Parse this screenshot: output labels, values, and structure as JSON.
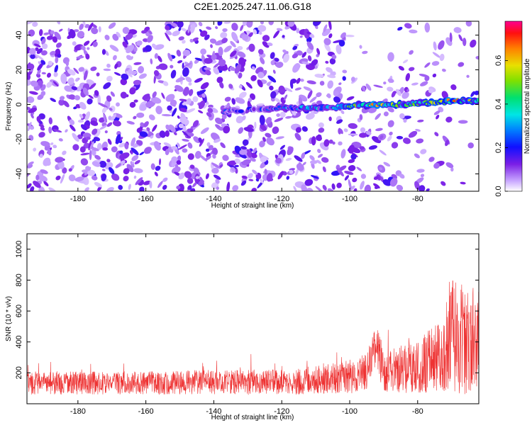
{
  "title": "C2E1.2025.247.11.06.G18",
  "chart_data": [
    {
      "type": "heatmap",
      "title": "C2E1.2025.247.11.06.G18",
      "xlabel": "Height of straight line (km)",
      "ylabel": "Frequency (Hz)",
      "xlim": [
        -195,
        -62
      ],
      "ylim": [
        -50,
        48
      ],
      "xticks": [
        -180,
        -160,
        -140,
        -120,
        -100,
        -80
      ],
      "yticks": [
        -40,
        -20,
        0,
        20,
        40
      ],
      "colorbar": {
        "label": "Normalized spectral amplitude",
        "range": [
          0,
          0.78
        ],
        "ticks": [
          "0.0",
          "0.2",
          "0.4",
          "0.6"
        ]
      },
      "signal_track": {
        "description": "narrow band near 0 Hz visible from about -137 km upward",
        "x": [
          -137,
          -130,
          -123,
          -115,
          -108,
          -100,
          -92,
          -85,
          -78,
          -70,
          -63
        ],
        "freq_hz": [
          -4,
          -3,
          -2,
          -2,
          -2,
          -1,
          0,
          0,
          1,
          2,
          2
        ],
        "amplitude": [
          0.25,
          0.2,
          0.28,
          0.3,
          0.38,
          0.48,
          0.62,
          0.45,
          0.5,
          0.65,
          0.55
        ]
      }
    },
    {
      "type": "line",
      "xlabel": "Height of straight line (km)",
      "ylabel": "SNR (10 * v/v)",
      "xlim": [
        -195,
        -62
      ],
      "ylim": [
        0,
        1100
      ],
      "xticks": [
        -180,
        -160,
        -140,
        -120,
        -100,
        -80
      ],
      "yticks": [
        200,
        400,
        600,
        800,
        1000
      ],
      "series": [
        {
          "name": "SNR",
          "color": "#ee3333",
          "envelope_x": [
            -195,
            -180,
            -160,
            -140,
            -120,
            -110,
            -100,
            -95,
            -92,
            -90,
            -85,
            -80,
            -75,
            -72,
            -70,
            -68,
            -66,
            -64,
            -62
          ],
          "envelope_mean": [
            130,
            135,
            135,
            140,
            140,
            155,
            175,
            210,
            380,
            190,
            230,
            240,
            290,
            330,
            480,
            450,
            380,
            420,
            400
          ],
          "envelope_spread": [
            70,
            75,
            75,
            80,
            85,
            90,
            110,
            120,
            140,
            130,
            160,
            170,
            220,
            260,
            420,
            380,
            330,
            350,
            330
          ]
        }
      ]
    }
  ],
  "colors": {
    "signal": "#ee3333",
    "axis": "#000000"
  }
}
